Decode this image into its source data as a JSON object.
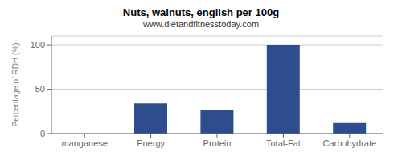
{
  "chart_data": {
    "type": "bar",
    "title": "Nuts, walnuts, english per 100g",
    "subtitle": "www.dietandfitnesstoday.com",
    "categories": [
      "manganese",
      "Energy",
      "Protein",
      "Total-Fat",
      "Carbohydrate"
    ],
    "values": [
      0,
      34,
      27,
      100,
      12
    ],
    "color": "#2e4d8e",
    "ylabel": "Percentage of RDH (%)",
    "ylim": [
      0,
      110
    ],
    "yticks": [
      0,
      50,
      100
    ],
    "grid": true
  }
}
